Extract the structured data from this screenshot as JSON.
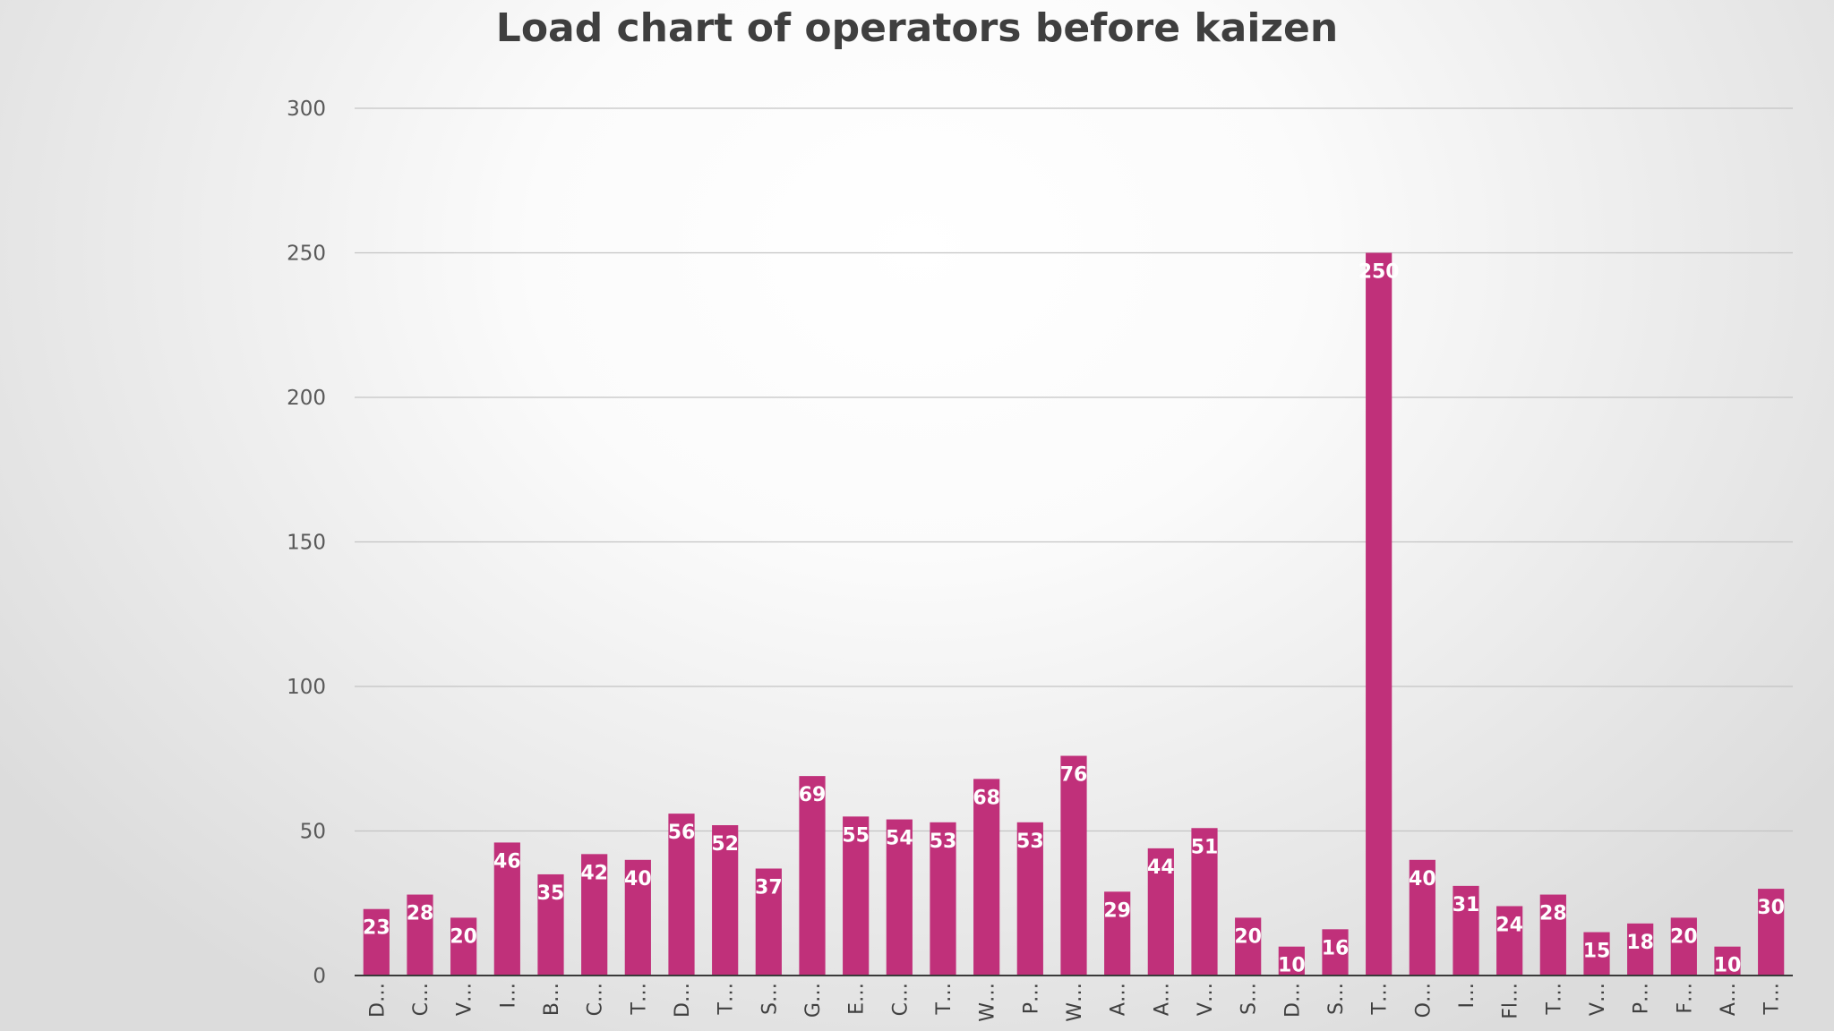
{
  "chart_data": {
    "type": "bar",
    "title": "Load chart of operators before kaizen",
    "xlabel": "",
    "ylabel": "",
    "ylim": [
      0,
      300
    ],
    "yticks": [
      0,
      50,
      100,
      150,
      200,
      250,
      300
    ],
    "grid": true,
    "legend": "none",
    "categories": [
      "D…",
      "C…",
      "V…",
      "I…",
      "B…",
      "C…",
      "T…",
      "D…",
      "T…",
      "S…",
      "G…",
      "E…",
      "C…",
      "T…",
      "W…",
      "P…",
      "W…",
      "A…",
      "A…",
      "V…",
      "S…",
      "D…",
      "S…",
      "T…",
      "O…",
      "I…",
      "Fl…",
      "T…",
      "V…",
      "P…",
      "F…",
      "A…",
      "T…"
    ],
    "values": [
      23,
      28,
      20,
      46,
      35,
      42,
      40,
      56,
      52,
      37,
      69,
      55,
      54,
      53,
      68,
      53,
      76,
      29,
      44,
      51,
      20,
      10,
      16,
      250,
      40,
      31,
      24,
      28,
      15,
      18,
      20,
      10,
      30
    ],
    "colors": {
      "bar": "#c0307a",
      "data_label": "#ffffff",
      "gridline": "#c4c4c4",
      "axis": "#3a3a3a"
    }
  }
}
